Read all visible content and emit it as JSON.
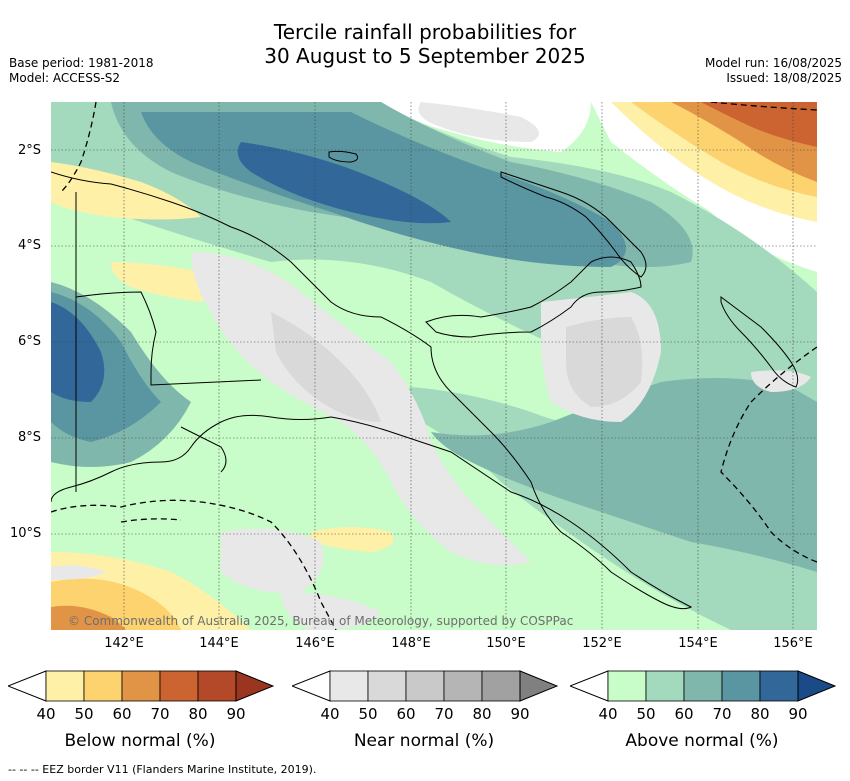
{
  "title_line1": "Tercile rainfall probabilities for",
  "title_line2": "30 August to 5 September 2025",
  "base_period": "Base period: 1981-2018",
  "model": "Model: ACCESS-S2",
  "model_run": "Model run: 16/08/2025",
  "issued": "Issued: 18/08/2025",
  "lat_labels": [
    "2°S",
    "4°S",
    "6°S",
    "8°S",
    "10°S"
  ],
  "lon_labels": [
    "142°E",
    "144°E",
    "146°E",
    "148°E",
    "150°E",
    "152°E",
    "154°E",
    "156°E"
  ],
  "copyright": "© Commonwealth of Australia 2025, Bureau of Meteorology, supported by COSPPac",
  "colorbars": [
    {
      "title": "Below normal (%)",
      "ticks": [
        "40",
        "50",
        "60",
        "70",
        "80",
        "90"
      ],
      "colors": [
        "#fff0a8",
        "#fdd370",
        "#e29446",
        "#cb6430",
        "#b34928",
        "#9a3620"
      ]
    },
    {
      "title": "Near normal (%)",
      "ticks": [
        "40",
        "50",
        "60",
        "70",
        "80",
        "90"
      ],
      "colors": [
        "#e8e8e8",
        "#d9d9d9",
        "#c9c9c9",
        "#b5b5b5",
        "#a1a1a1",
        "#808080"
      ]
    },
    {
      "title": "Above normal (%)",
      "ticks": [
        "40",
        "50",
        "60",
        "70",
        "80",
        "90"
      ],
      "colors": [
        "#c8fcc8",
        "#a3d9bc",
        "#80b7ad",
        "#5a96a1",
        "#32679a",
        "#1a4a88"
      ]
    }
  ],
  "footnote": "--  --  -- EEZ border V11 (Flanders Marine Institute, 2019)."
}
